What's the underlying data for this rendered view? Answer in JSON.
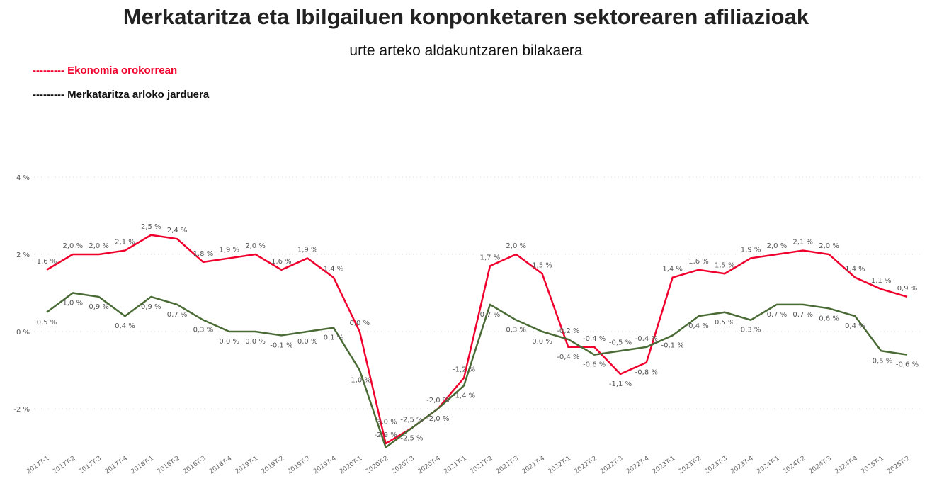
{
  "chart_data": {
    "type": "line",
    "title": "Merkataritza eta Ibilgailuen konponketaren sektorearen afiliazioak",
    "subtitle": "urte arteko aldakuntzaren bilakaera",
    "ylim": [
      -3.2,
      4
    ],
    "yticks": [
      -2,
      0,
      2,
      4
    ],
    "ytick_labels": [
      "-2 %",
      "0 %",
      "2 %",
      "4 %"
    ],
    "grid": true,
    "legend_placement": "top-left",
    "categories": [
      "2017T-1",
      "2017T-2",
      "2017T-3",
      "2017T-4",
      "2018T-1",
      "2018T-2",
      "2018T-3",
      "2018T-4",
      "2019T-1",
      "2019T-2",
      "2019T-3",
      "2019T-4",
      "2020T-1",
      "2020T-2",
      "2020T-3",
      "2020T-4",
      "2021T-1",
      "2021T-2",
      "2021T-3",
      "2021T-4",
      "2022T-1",
      "2022T-2",
      "2022T-3",
      "2022T-4",
      "2023T-1",
      "2023T-2",
      "2023T-3",
      "2023T-4",
      "2024T-1",
      "2024T-2",
      "2024T-3",
      "2024T-4",
      "2025T-1",
      "2025T-2"
    ],
    "series": [
      {
        "name": "--------- Ekonomia orokorrean",
        "color": "#f0002d",
        "values": [
          1.6,
          2.0,
          2.0,
          2.1,
          2.5,
          2.4,
          1.8,
          1.9,
          2.0,
          1.6,
          1.9,
          1.4,
          0.0,
          -2.9,
          -2.5,
          -2.0,
          -1.2,
          1.7,
          2.0,
          1.5,
          -0.4,
          -0.4,
          -1.1,
          -0.8,
          1.4,
          1.6,
          1.5,
          1.9,
          2.0,
          2.1,
          2.0,
          1.4,
          1.1,
          0.9
        ]
      },
      {
        "name": "--------- Merkataritza arloko jarduera",
        "color": "#4a6b35",
        "values": [
          0.5,
          1.0,
          0.9,
          0.4,
          0.9,
          0.7,
          0.3,
          0.0,
          0.0,
          -0.1,
          -0.0,
          0.1,
          -1.0,
          -3.0,
          -2.5,
          -2.0,
          -1.4,
          0.7,
          0.3,
          -0.0,
          -0.2,
          -0.6,
          -0.5,
          -0.4,
          -0.1,
          0.4,
          0.5,
          0.3,
          0.7,
          0.7,
          0.6,
          0.4,
          -0.5,
          -0.6
        ]
      }
    ]
  }
}
